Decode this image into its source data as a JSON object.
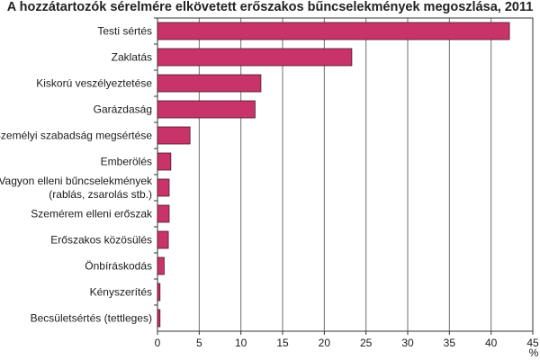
{
  "chart_data": {
    "type": "bar",
    "orientation": "horizontal",
    "title": "A hozzátartozók sérelmére elkövetett erőszakos bűncselekmények megoszlása, 2011",
    "xlabel": "%",
    "ylabel": "",
    "categories": [
      [
        "Testi sértés"
      ],
      [
        "Zaklatás"
      ],
      [
        "Kiskorú veszélyeztetése"
      ],
      [
        "Garázdaság"
      ],
      [
        "Személyi szabadság megsértése"
      ],
      [
        "Emberölés"
      ],
      [
        "Vagyon elleni bűncselekmények",
        "(rablás, zsarolás stb.)"
      ],
      [
        "Szemérem elleni erőszak"
      ],
      [
        "Erőszakos közösülés"
      ],
      [
        "Önbíráskodás"
      ],
      [
        "Kényszerítés"
      ],
      [
        "Becsületsértés (tettleges)"
      ]
    ],
    "values": [
      42.2,
      23.3,
      12.4,
      11.7,
      3.9,
      1.6,
      1.4,
      1.4,
      1.3,
      0.8,
      0.3,
      0.3
    ],
    "xlim": [
      0,
      45
    ],
    "xticks": [
      0,
      5,
      10,
      15,
      20,
      25,
      30,
      35,
      40,
      45
    ],
    "grid": true,
    "bar_color": "#c8336a",
    "bar_edge_color": "#4a1a2a"
  }
}
